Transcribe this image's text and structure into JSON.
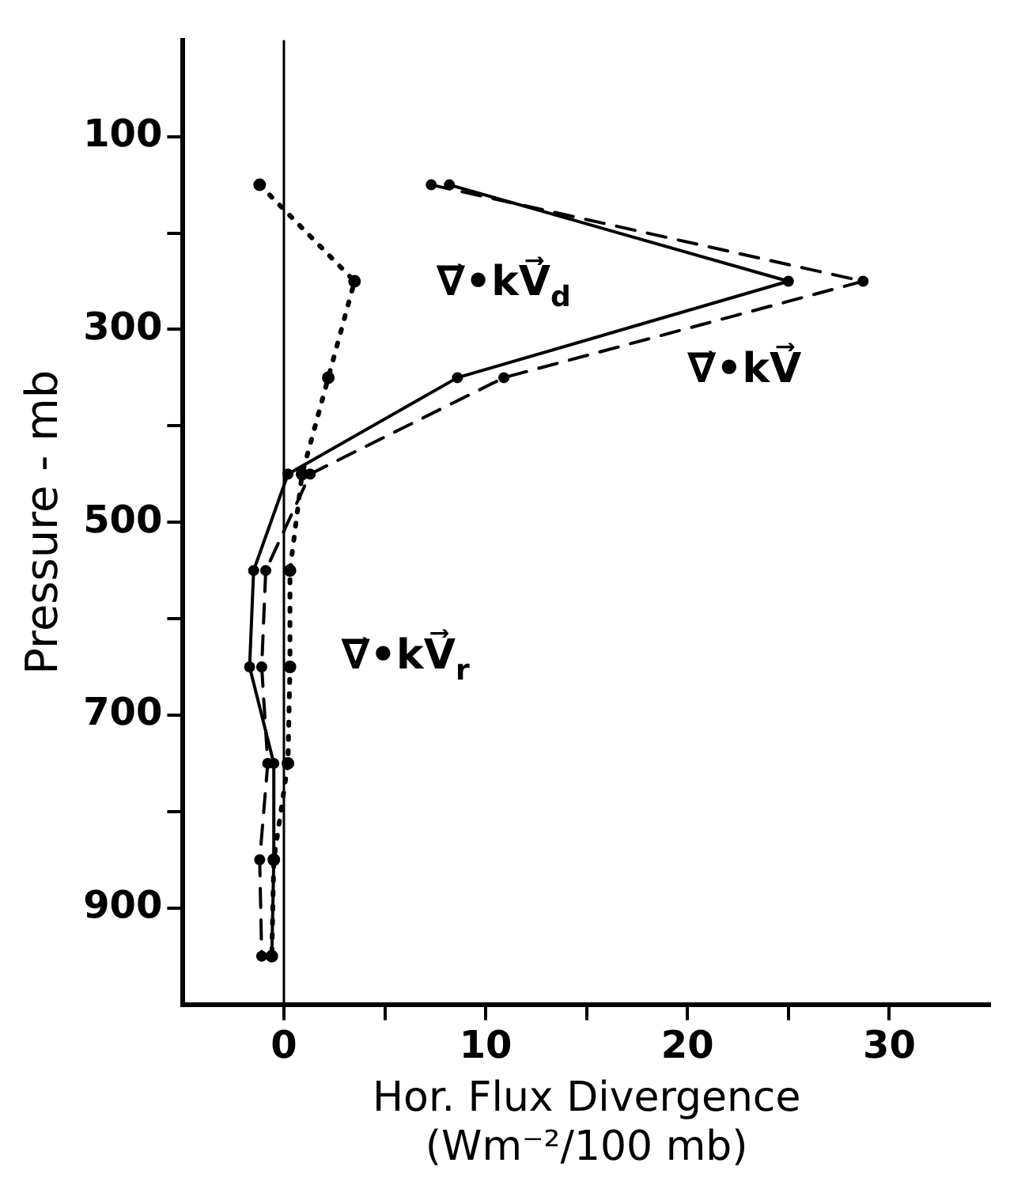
{
  "chart_data": {
    "type": "line",
    "xlabel": "Hor. Flux Divergence\n(Wm⁻²/100 mb)",
    "ylabel": "Pressure - mb",
    "xlim": [
      -5,
      35
    ],
    "xticks": [
      0,
      {
        "value": 5,
        "label": null
      },
      10,
      {
        "value": 15,
        "label": null
      },
      20,
      {
        "value": 25,
        "label": null
      },
      30
    ],
    "ylim": [
      1000,
      0
    ],
    "yticks": [
      100,
      {
        "value": 200,
        "label": null
      },
      300,
      {
        "value": 400,
        "label": null
      },
      500,
      {
        "value": 600,
        "label": null
      },
      700,
      {
        "value": 800,
        "label": null
      },
      900
    ],
    "grid": false,
    "legend": false,
    "marker": "circle",
    "series": [
      {
        "name": "∇⃗•kV⃗$_{d}$",
        "color": "#000000",
        "line_style": "solid",
        "x": [
          8.2,
          25.0,
          8.6,
          0.2,
          -1.5,
          -1.7,
          -0.5,
          -0.5,
          -0.6
        ],
        "values": [
          150,
          250,
          350,
          450,
          550,
          650,
          750,
          850,
          950
        ]
      },
      {
        "name": "∇⃗•kV⃗",
        "color": "#000000",
        "line_style": "dashed",
        "x": [
          7.3,
          28.7,
          10.9,
          1.3,
          -0.9,
          -1.1,
          -0.8,
          -1.2,
          -1.1
        ],
        "values": [
          150,
          250,
          350,
          450,
          550,
          650,
          750,
          850,
          950
        ]
      },
      {
        "name": "∇⃗•kV⃗$_{r}$",
        "color": "#000000",
        "line_style": "dotted",
        "x": [
          -1.2,
          3.5,
          2.2,
          0.9,
          0.3,
          0.3,
          0.2,
          -0.5,
          -0.6
        ],
        "values": [
          150,
          250,
          350,
          450,
          550,
          650,
          750,
          850,
          950
        ]
      }
    ],
    "ref_lines": [
      {
        "axis": "x",
        "value": 0,
        "color": "#000000"
      }
    ]
  }
}
